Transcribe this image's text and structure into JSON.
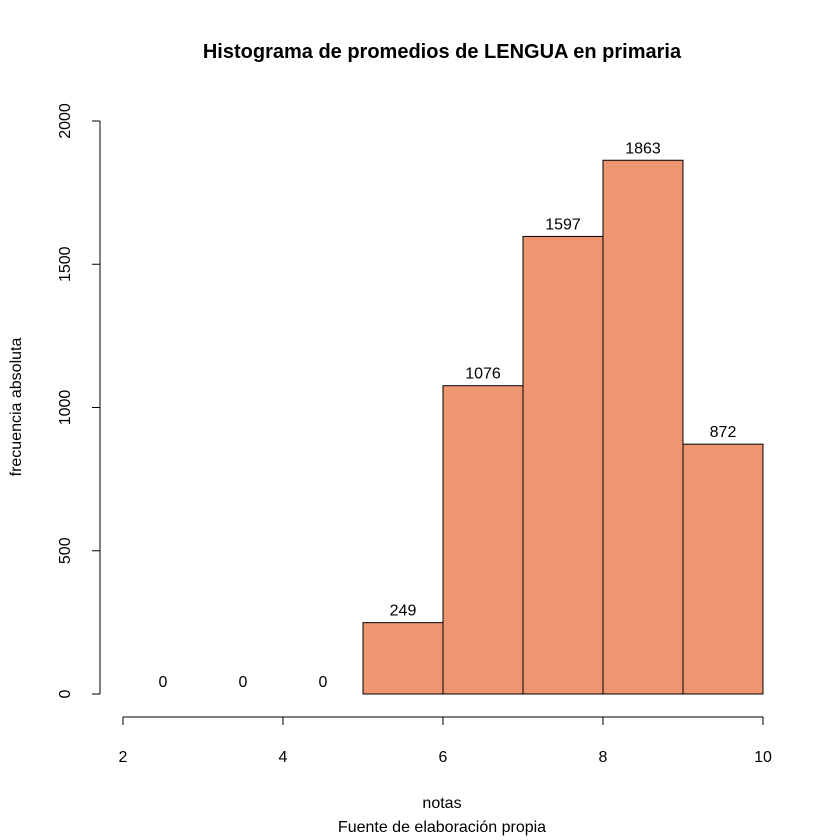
{
  "chart_data": {
    "type": "bar",
    "title": "Histograma de promedios de LENGUA en primaria",
    "xlabel": "notas",
    "caption": "Fuente de elaboración propia",
    "ylabel": "frecuencia absoluta",
    "bins": [
      [
        2,
        3
      ],
      [
        3,
        4
      ],
      [
        4,
        5
      ],
      [
        5,
        6
      ],
      [
        6,
        7
      ],
      [
        7,
        8
      ],
      [
        8,
        9
      ],
      [
        9,
        10
      ]
    ],
    "values": [
      0,
      0,
      0,
      249,
      1076,
      1597,
      1863,
      872
    ],
    "value_labels": [
      "0",
      "0",
      "0",
      "249",
      "1076",
      "1597",
      "1863",
      "872"
    ],
    "xlim": [
      2,
      10
    ],
    "ylim": [
      0,
      2000
    ],
    "x_ticks": [
      2,
      4,
      6,
      8,
      10
    ],
    "x_tick_labels": [
      "2",
      "4",
      "6",
      "8",
      "10"
    ],
    "y_ticks": [
      0,
      500,
      1000,
      1500,
      2000
    ],
    "y_tick_labels": [
      "0",
      "500",
      "1000",
      "1500",
      "2000"
    ],
    "bar_color": "#EE9572",
    "grid": false,
    "legend": "none"
  }
}
